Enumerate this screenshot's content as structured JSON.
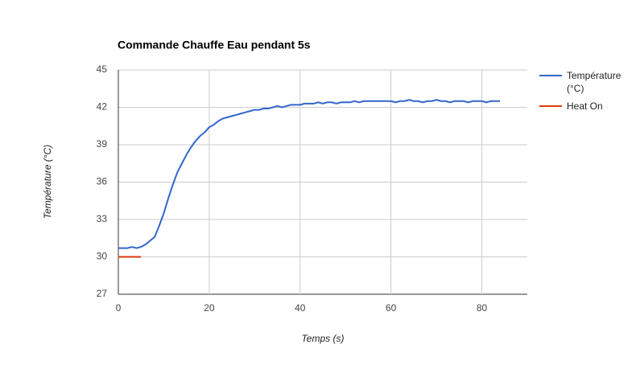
{
  "chart_data": {
    "type": "line",
    "title": "Commande Chauffe Eau pendant 5s",
    "x_label": "Temps (s)",
    "y_label": "Température (°C)",
    "x": [
      0,
      1,
      2,
      3,
      4,
      5,
      6,
      7,
      8,
      9,
      10,
      11,
      12,
      13,
      14,
      15,
      16,
      17,
      18,
      19,
      20,
      21,
      22,
      23,
      24,
      25,
      26,
      27,
      28,
      29,
      30,
      31,
      32,
      33,
      34,
      35,
      36,
      37,
      38,
      39,
      40,
      41,
      42,
      43,
      44,
      45,
      46,
      47,
      48,
      49,
      50,
      51,
      52,
      53,
      54,
      55,
      56,
      57,
      58,
      59,
      60,
      61,
      62,
      63,
      64,
      65,
      66,
      67,
      68,
      69,
      70,
      71,
      72,
      73,
      74,
      75,
      76,
      77,
      78,
      79,
      80,
      81,
      82,
      83,
      84
    ],
    "series": [
      {
        "name": "Température (°C)",
        "color": "#3366cc",
        "values": [
          30.7,
          30.7,
          30.7,
          30.8,
          30.7,
          30.8,
          31.0,
          31.3,
          31.6,
          32.5,
          33.5,
          34.7,
          35.8,
          36.8,
          37.5,
          38.2,
          38.8,
          39.3,
          39.7,
          40.0,
          40.4,
          40.6,
          40.9,
          41.1,
          41.2,
          41.3,
          41.4,
          41.5,
          41.6,
          41.7,
          41.8,
          41.8,
          41.9,
          41.9,
          42.0,
          42.1,
          42.0,
          42.1,
          42.2,
          42.2,
          42.2,
          42.3,
          42.3,
          42.3,
          42.4,
          42.3,
          42.4,
          42.4,
          42.3,
          42.4,
          42.4,
          42.4,
          42.5,
          42.4,
          42.5,
          42.5,
          42.5,
          42.5,
          42.5,
          42.5,
          42.5,
          42.4,
          42.5,
          42.5,
          42.6,
          42.5,
          42.5,
          42.4,
          42.5,
          42.5,
          42.6,
          42.5,
          42.5,
          42.4,
          42.5,
          42.5,
          42.5,
          42.4,
          42.5,
          42.5,
          42.5,
          42.4,
          42.5,
          42.5,
          42.5
        ]
      },
      {
        "name": "Heat On",
        "color": "#dc3912",
        "values": [
          30,
          30,
          30,
          30,
          30,
          30,
          null,
          null,
          null,
          null,
          null,
          null,
          null,
          null,
          null,
          null,
          null,
          null,
          null,
          null,
          null,
          null,
          null,
          null,
          null,
          null,
          null,
          null,
          null,
          null,
          null,
          null,
          null,
          null,
          null,
          null,
          null,
          null,
          null,
          null,
          null,
          null,
          null,
          null,
          null,
          null,
          null,
          null,
          null,
          null,
          null,
          null,
          null,
          null,
          null,
          null,
          null,
          null,
          null,
          null,
          null,
          null,
          null,
          null,
          null,
          null,
          null,
          null,
          null,
          null,
          null,
          null,
          null,
          null,
          null,
          null,
          null,
          null,
          null,
          null,
          null,
          null,
          null,
          null,
          null
        ]
      }
    ],
    "xlim": [
      0,
      90
    ],
    "xticks": [
      0,
      20,
      40,
      60,
      80
    ],
    "ylim": [
      27,
      45
    ],
    "yticks": [
      27,
      30,
      33,
      36,
      39,
      42,
      45
    ],
    "grid": true,
    "legend": "right"
  }
}
